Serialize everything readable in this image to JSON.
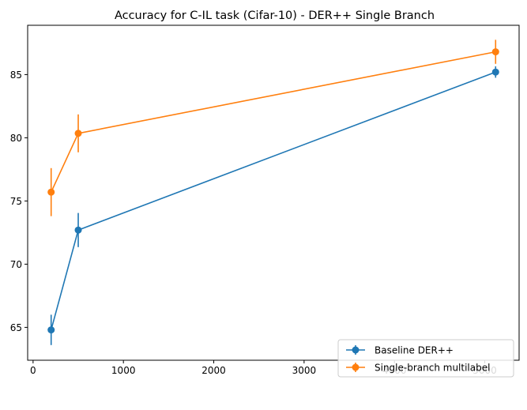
{
  "chart_data": {
    "type": "line",
    "title": "Accuracy for C-IL task (Cifar-10) - DER++ Single Branch",
    "xlabel": "",
    "ylabel": "",
    "x": [
      200,
      500,
      5120
    ],
    "xlim": [
      -60,
      5380
    ],
    "ylim": [
      62.4,
      88.9
    ],
    "xticks": [
      0,
      1000,
      2000,
      3000,
      4000,
      5000
    ],
    "yticks": [
      65,
      70,
      75,
      80,
      85
    ],
    "grid": false,
    "legend_position": "lower right",
    "series": [
      {
        "name": "Baseline DER++",
        "color": "#1f77b4",
        "values": [
          64.8,
          72.7,
          85.2
        ],
        "errors": [
          1.2,
          1.35,
          0.45
        ]
      },
      {
        "name": "Single-branch multilabel",
        "color": "#ff7f0e",
        "values": [
          75.7,
          80.35,
          86.8
        ],
        "errors": [
          1.9,
          1.5,
          0.95
        ]
      }
    ]
  }
}
